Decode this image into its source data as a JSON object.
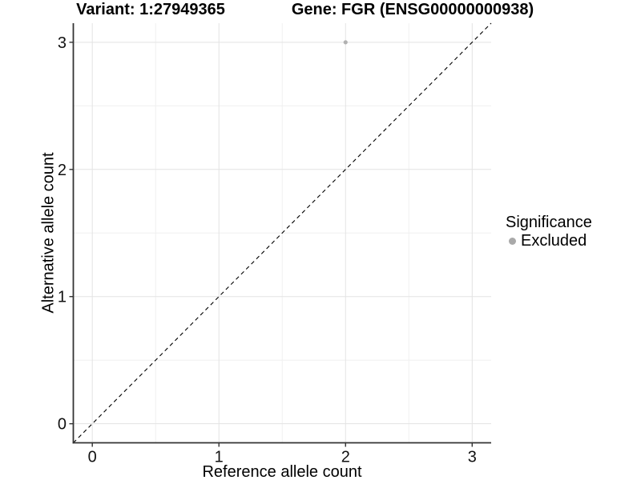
{
  "chart_data": {
    "type": "scatter",
    "title_left": "Variant: 1:27949365",
    "title_right": "Gene: FGR (ENSG00000000938)",
    "xlabel": "Reference allele count",
    "ylabel": "Alternative allele count",
    "xlim": [
      -0.15,
      3.15
    ],
    "ylim": [
      -0.15,
      3.15
    ],
    "x_ticks": [
      0,
      1,
      2,
      3
    ],
    "y_ticks": [
      0,
      1,
      2,
      3
    ],
    "x_minor": [
      0.5,
      1.5,
      2.5
    ],
    "y_minor": [
      0.5,
      1.5,
      2.5
    ],
    "grid": "major+minor",
    "identity_line": {
      "style": "dashed",
      "x1": -0.15,
      "y1": -0.15,
      "x2": 3.15,
      "y2": 3.15,
      "color": "#000000"
    },
    "series": [
      {
        "name": "Excluded",
        "marker": "circle",
        "color": "#b1b1b1",
        "points": [
          [
            2,
            3
          ]
        ]
      }
    ],
    "legend": {
      "title": "Significance",
      "position": "right",
      "items": [
        {
          "label": "Excluded",
          "color": "#a9a9a9",
          "marker": "circle"
        }
      ]
    },
    "colors": {
      "grid_major": "#e3e3e3",
      "grid_minor": "#f0f0f0",
      "axis_line": "#333333",
      "tick_mark": "#333333",
      "tick_text": "#111111",
      "background": "#ffffff"
    }
  }
}
